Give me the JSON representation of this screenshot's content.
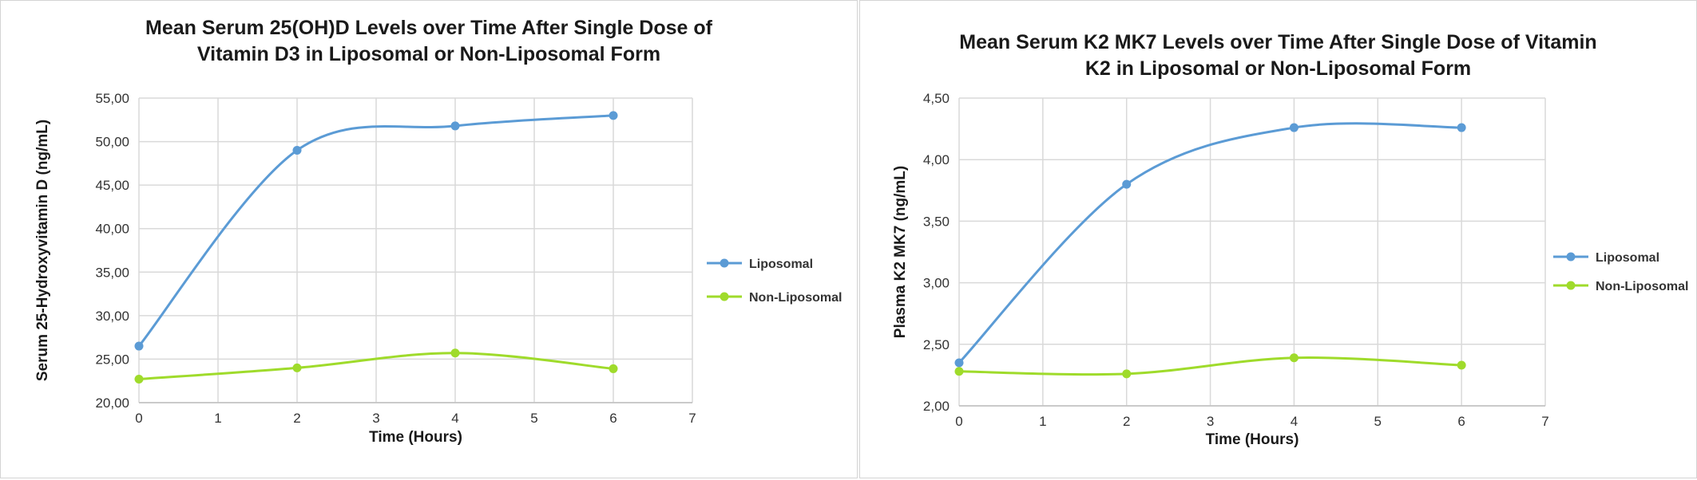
{
  "chart_data": [
    {
      "type": "line",
      "title": [
        "Mean Serum 25(OH)D Levels over Time After Single Dose of",
        "Vitamin D3 in Liposomal or Non-Liposomal Form"
      ],
      "xlabel": "Time (Hours)",
      "ylabel": "Serum 25-Hydroxyvitamin D (ng/mL)",
      "xlim": [
        0,
        7
      ],
      "ylim": [
        20,
        55
      ],
      "x_ticks": [
        "0",
        "1",
        "2",
        "3",
        "4",
        "5",
        "6",
        "7"
      ],
      "y_ticks": [
        "20,00",
        "25,00",
        "30,00",
        "35,00",
        "40,00",
        "45,00",
        "50,00",
        "55,00"
      ],
      "grid": true,
      "smooth": true,
      "legend_position": "right",
      "series": [
        {
          "name": "Liposomal",
          "color": "#5b9bd5",
          "x": [
            0,
            2,
            4,
            6
          ],
          "values": [
            26.5,
            49.0,
            51.8,
            53.0
          ]
        },
        {
          "name": "Non-Liposomal",
          "color": "#9fdb2b",
          "x": [
            0,
            2,
            4,
            6
          ],
          "values": [
            22.7,
            24.0,
            25.7,
            23.9
          ]
        }
      ]
    },
    {
      "type": "line",
      "title": [
        "Mean Serum K2 MK7 Levels over Time After Single Dose of Vitamin",
        "K2 in Liposomal or Non-Liposomal Form"
      ],
      "xlabel": "Time (Hours)",
      "ylabel": "Plasma K2 MK7 (ng/mL)",
      "xlim": [
        0,
        7
      ],
      "ylim": [
        2.0,
        4.5
      ],
      "x_ticks": [
        "0",
        "1",
        "2",
        "3",
        "4",
        "5",
        "6",
        "7"
      ],
      "y_ticks": [
        "2,00",
        "2,50",
        "3,00",
        "3,50",
        "4,00",
        "4,50"
      ],
      "grid": true,
      "smooth": true,
      "legend_position": "right",
      "series": [
        {
          "name": "Liposomal",
          "color": "#5b9bd5",
          "x": [
            0,
            2,
            4,
            6
          ],
          "values": [
            2.35,
            3.8,
            4.26,
            4.26
          ]
        },
        {
          "name": "Non-Liposomal",
          "color": "#9fdb2b",
          "x": [
            0,
            2,
            4,
            6
          ],
          "values": [
            2.28,
            2.26,
            2.39,
            2.33
          ]
        }
      ]
    }
  ]
}
